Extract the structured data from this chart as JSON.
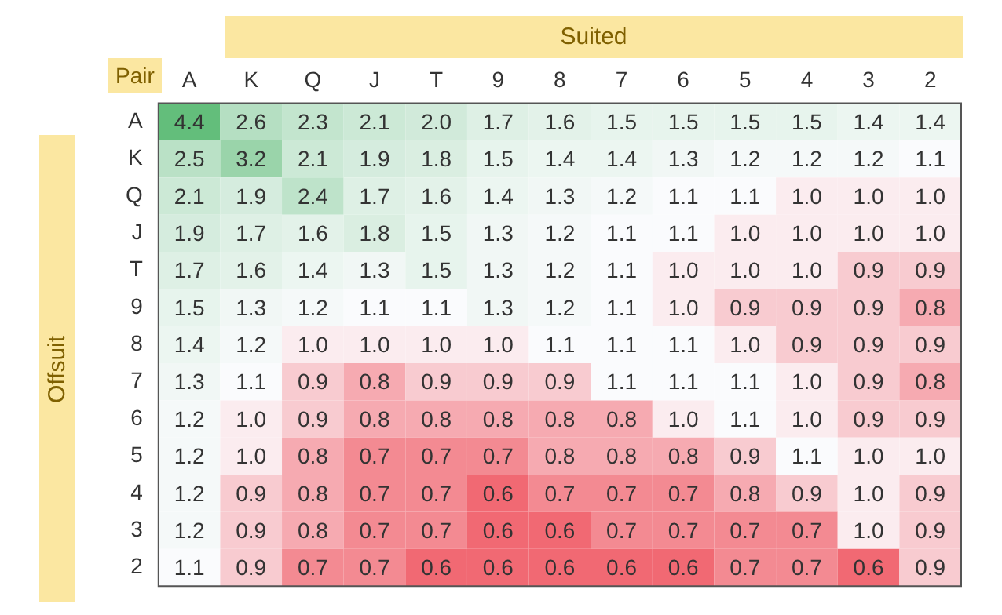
{
  "chart_data": {
    "type": "heatmap",
    "xlabel": "Suited",
    "ylabel": "Offsuit",
    "annotations": [
      "Pair"
    ],
    "categories": [
      "A",
      "K",
      "Q",
      "J",
      "T",
      "9",
      "8",
      "7",
      "6",
      "5",
      "4",
      "3",
      "2"
    ],
    "y_categories": [
      "A",
      "K",
      "Q",
      "J",
      "T",
      "9",
      "8",
      "7",
      "6",
      "5",
      "4",
      "3",
      "2"
    ],
    "cells": [
      [
        4.4,
        2.6,
        2.3,
        2.1,
        2.0,
        1.7,
        1.6,
        1.5,
        1.5,
        1.5,
        1.5,
        1.4,
        1.4
      ],
      [
        2.5,
        3.2,
        2.1,
        1.9,
        1.8,
        1.5,
        1.4,
        1.4,
        1.3,
        1.2,
        1.2,
        1.2,
        1.1
      ],
      [
        2.1,
        1.9,
        2.4,
        1.7,
        1.6,
        1.4,
        1.3,
        1.2,
        1.1,
        1.1,
        1.0,
        1.0,
        1.0
      ],
      [
        1.9,
        1.7,
        1.6,
        1.8,
        1.5,
        1.3,
        1.2,
        1.1,
        1.1,
        1.0,
        1.0,
        1.0,
        1.0
      ],
      [
        1.7,
        1.6,
        1.4,
        1.3,
        1.5,
        1.3,
        1.2,
        1.1,
        1.0,
        1.0,
        1.0,
        0.9,
        0.9
      ],
      [
        1.5,
        1.3,
        1.2,
        1.1,
        1.1,
        1.3,
        1.2,
        1.1,
        1.0,
        0.9,
        0.9,
        0.9,
        0.8
      ],
      [
        1.4,
        1.2,
        1.0,
        1.0,
        1.0,
        1.0,
        1.1,
        1.1,
        1.1,
        1.0,
        0.9,
        0.9,
        0.9
      ],
      [
        1.3,
        1.1,
        0.9,
        0.8,
        0.9,
        0.9,
        0.9,
        1.1,
        1.1,
        1.1,
        1.0,
        0.9,
        0.8
      ],
      [
        1.2,
        1.0,
        0.9,
        0.8,
        0.8,
        0.8,
        0.8,
        0.8,
        1.0,
        1.1,
        1.0,
        0.9,
        0.9
      ],
      [
        1.2,
        1.0,
        0.8,
        0.7,
        0.7,
        0.7,
        0.8,
        0.8,
        0.8,
        0.9,
        1.1,
        1.0,
        1.0
      ],
      [
        1.2,
        0.9,
        0.8,
        0.7,
        0.7,
        0.6,
        0.7,
        0.7,
        0.7,
        0.8,
        0.9,
        1.0,
        0.9
      ],
      [
        1.2,
        0.9,
        0.8,
        0.7,
        0.7,
        0.6,
        0.6,
        0.7,
        0.7,
        0.7,
        0.7,
        1.0,
        0.9
      ],
      [
        1.1,
        0.9,
        0.7,
        0.7,
        0.6,
        0.6,
        0.6,
        0.6,
        0.6,
        0.7,
        0.7,
        0.6,
        0.9
      ]
    ],
    "cell_labels": [
      [
        "4.4",
        "2.6",
        "2.3",
        "2.1",
        "2.0",
        "1.7",
        "1.6",
        "1.5",
        "1.5",
        "1.5",
        "1.5",
        "1.4",
        "1.4"
      ],
      [
        "2.5",
        "3.2",
        "2.1",
        "1.9",
        "1.8",
        "1.5",
        "1.4",
        "1.4",
        "1.3",
        "1.2",
        "1.2",
        "1.2",
        "1.1"
      ],
      [
        "2.1",
        "1.9",
        "2.4",
        "1.7",
        "1.6",
        "1.4",
        "1.3",
        "1.2",
        "1.1",
        "1.1",
        "1.0",
        "1.0",
        "1.0"
      ],
      [
        "1.9",
        "1.7",
        "1.6",
        "1.8",
        "1.5",
        "1.3",
        "1.2",
        "1.1",
        "1.1",
        "1.0",
        "1.0",
        "1.0",
        "1.0"
      ],
      [
        "1.7",
        "1.6",
        "1.4",
        "1.3",
        "1.5",
        "1.3",
        "1.2",
        "1.1",
        "1.0",
        "1.0",
        "1.0",
        "0.9",
        "0.9"
      ],
      [
        "1.5",
        "1.3",
        "1.2",
        "1.1",
        "1.1",
        "1.3",
        "1.2",
        "1.1",
        "1.0",
        "0.9",
        "0.9",
        "0.9",
        "0.8"
      ],
      [
        "1.4",
        "1.2",
        "1.0",
        "1.0",
        "1.0",
        "1.0",
        "1.1",
        "1.1",
        "1.1",
        "1.0",
        "0.9",
        "0.9",
        "0.9"
      ],
      [
        "1.3",
        "1.1",
        "0.9",
        "0.8",
        "0.9",
        "0.9",
        "0.9",
        "1.1",
        "1.1",
        "1.1",
        "1.0",
        "0.9",
        "0.8"
      ],
      [
        "1.2",
        "1.0",
        "0.9",
        "0.8",
        "0.8",
        "0.8",
        "0.8",
        "0.8",
        "1.0",
        "1.1",
        "1.0",
        "0.9",
        "0.9"
      ],
      [
        "1.2",
        "1.0",
        "0.8",
        "0.7",
        "0.7",
        "0.7",
        "0.8",
        "0.8",
        "0.8",
        "0.9",
        "1.1",
        "1.0",
        "1.0"
      ],
      [
        "1.2",
        "0.9",
        "0.8",
        "0.7",
        "0.7",
        "0.6",
        "0.7",
        "0.7",
        "0.7",
        "0.8",
        "0.9",
        "1.0",
        "0.9"
      ],
      [
        "1.2",
        "0.9",
        "0.8",
        "0.7",
        "0.7",
        "0.6",
        "0.6",
        "0.7",
        "0.7",
        "0.7",
        "0.7",
        "1.0",
        "0.9"
      ],
      [
        "1.1",
        "0.9",
        "0.7",
        "0.7",
        "0.6",
        "0.6",
        "0.6",
        "0.6",
        "0.6",
        "0.7",
        "0.7",
        "0.6",
        "0.9"
      ]
    ]
  }
}
